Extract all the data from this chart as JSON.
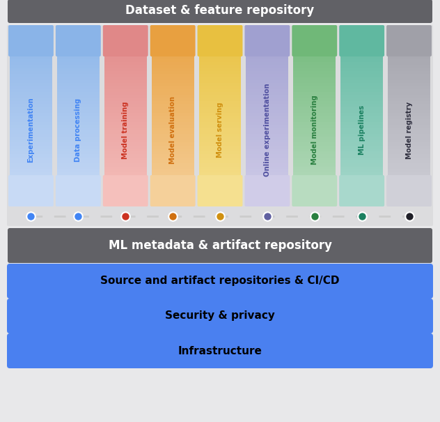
{
  "outer_bg": "#e8e8ea",
  "top_bar": {
    "text": "Dataset & feature repository",
    "color": "#616166",
    "text_color": "#ffffff",
    "fontsize": 12,
    "fontweight": "bold"
  },
  "middle_bar": {
    "text": "ML metadata & artifact repository",
    "color": "#616166",
    "text_color": "#ffffff",
    "fontsize": 12,
    "fontweight": "bold"
  },
  "bottom_bars": [
    {
      "text": "Source and artifact repositories & CI/CD",
      "color": "#4a80f0",
      "text_color": "#000000",
      "fontsize": 11,
      "fontweight": "bold"
    },
    {
      "text": "Security & privacy",
      "color": "#4a80f0",
      "text_color": "#000000",
      "fontsize": 11,
      "fontweight": "bold"
    },
    {
      "text": "Infrastructure",
      "color": "#4a80f0",
      "text_color": "#000000",
      "fontsize": 11,
      "fontweight": "bold"
    }
  ],
  "columns": [
    {
      "label": "Experimentation",
      "color_top": "#8ab4e8",
      "color_bottom": "#c8daf5",
      "text_color": "#4285f4",
      "dot_color": "#4285f4"
    },
    {
      "label": "Data processing",
      "color_top": "#8ab4e8",
      "color_bottom": "#c8daf5",
      "text_color": "#4285f4",
      "dot_color": "#4285f4"
    },
    {
      "label": "Model training",
      "color_top": "#e08888",
      "color_bottom": "#f5c0bc",
      "text_color": "#cc3322",
      "dot_color": "#cc3322"
    },
    {
      "label": "Model evaluation",
      "color_top": "#e8a040",
      "color_bottom": "#f5d09a",
      "text_color": "#d07010",
      "dot_color": "#d07010"
    },
    {
      "label": "Model serving",
      "color_top": "#e8c040",
      "color_bottom": "#f5e090",
      "text_color": "#d09010",
      "dot_color": "#d09010"
    },
    {
      "label": "Online experimentation",
      "color_top": "#a0a0d0",
      "color_bottom": "#d0cce8",
      "text_color": "#5050a0",
      "dot_color": "#6060a0"
    },
    {
      "label": "Model monitoring",
      "color_top": "#70b878",
      "color_bottom": "#b8dcc0",
      "text_color": "#2a8040",
      "dot_color": "#2a8040"
    },
    {
      "label": "ML pipelines",
      "color_top": "#60b8a0",
      "color_bottom": "#a8d8cc",
      "text_color": "#1a8060",
      "dot_color": "#1a8060"
    },
    {
      "label": "Model registry",
      "color_top": "#a0a0a8",
      "color_bottom": "#d0d0d8",
      "text_color": "#303040",
      "dot_color": "#202028"
    }
  ]
}
